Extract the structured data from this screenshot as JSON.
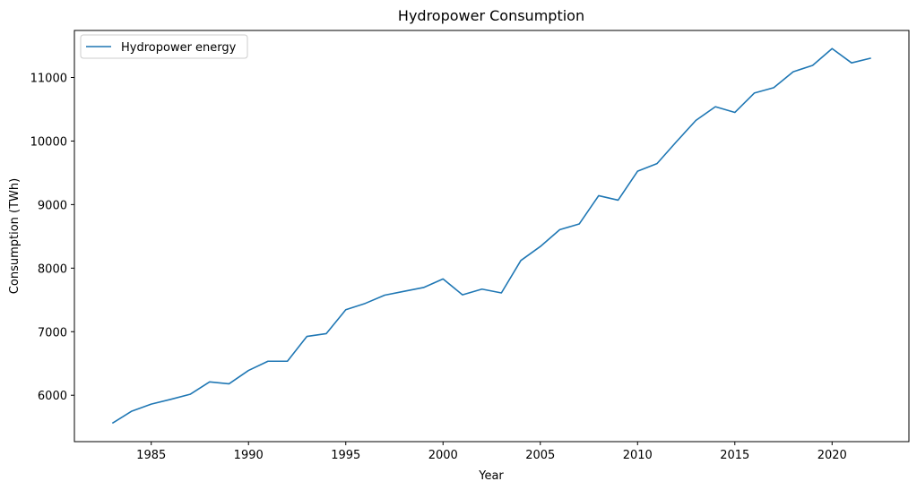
{
  "chart_data": {
    "type": "line",
    "title": "Hydropower Consumption",
    "xlabel": "Year",
    "ylabel": "Consumption (TWh)",
    "xlim": [
      1981.05,
      2023.95
    ],
    "ylim": [
      5270,
      11740
    ],
    "xticks": [
      1985,
      1990,
      1995,
      2000,
      2005,
      2010,
      2015,
      2020
    ],
    "yticks": [
      6000,
      7000,
      8000,
      9000,
      10000,
      11000
    ],
    "grid": false,
    "legend_position": "top-left",
    "series": [
      {
        "name": "Hydropower energy",
        "color": "#1f77b4",
        "x": [
          1983,
          1984,
          1985,
          1986,
          1987,
          1988,
          1989,
          1990,
          1991,
          1992,
          1993,
          1994,
          1995,
          1996,
          1997,
          1998,
          1999,
          2000,
          2001,
          2002,
          2003,
          2004,
          2005,
          2006,
          2007,
          2008,
          2009,
          2010,
          2011,
          2012,
          2013,
          2014,
          2015,
          2016,
          2017,
          2018,
          2019,
          2020,
          2021,
          2022
        ],
        "y": [
          5560,
          5750,
          5860,
          5935,
          6015,
          6210,
          6180,
          6390,
          6535,
          6535,
          6925,
          6970,
          7345,
          7445,
          7575,
          7635,
          7695,
          7830,
          7580,
          7670,
          7610,
          8120,
          8340,
          8605,
          8695,
          9140,
          9070,
          9525,
          9645,
          9990,
          10325,
          10540,
          10450,
          10755,
          10840,
          11090,
          11190,
          11455,
          11230,
          11305
        ]
      }
    ]
  }
}
